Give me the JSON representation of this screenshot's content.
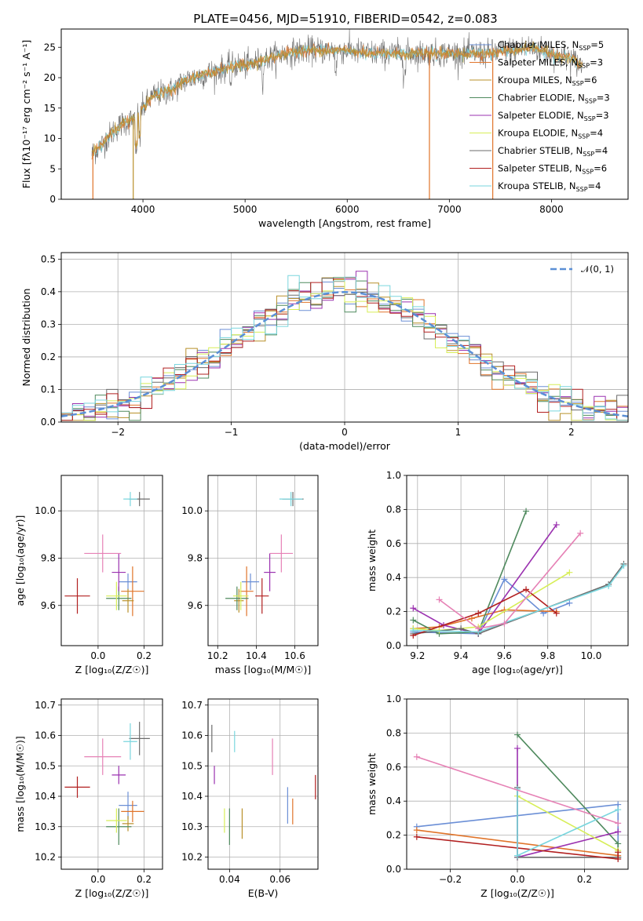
{
  "title": "PLATE=0456, MJD=51910, FIBERID=0542, z=0.083",
  "colors": {
    "Chabrier MILES": "#6b8fd6",
    "Salpeter MILES": "#e0742a",
    "Kroupa MILES": "#b8902a",
    "Chabrier ELODIE": "#4f8a5e",
    "Salpeter ELODIE": "#9b32b0",
    "Kroupa ELODIE": "#d7ee57",
    "Chabrier STELIB": "#6b6b6b",
    "Salpeter STELIB": "#b22020",
    "Kroupa STELIB": "#7ad6de",
    "pink": "#e681b5",
    "normal": "#5b8fd6"
  },
  "chart_data": [
    {
      "id": "spectrum",
      "type": "line",
      "title": "PLATE=0456, MJD=51910, FIBERID=0542, z=0.083",
      "xlabel": "wavelength [Angstrom, rest frame]",
      "ylabel": "Flux [fλ10⁻¹⁷ erg cm⁻² s⁻¹ A⁻¹]",
      "xlim": [
        3200,
        8750
      ],
      "ylim": [
        0,
        28
      ],
      "xticks": [
        "4000",
        "5000",
        "6000",
        "7000",
        "8000"
      ],
      "yticks": [
        "0",
        "5",
        "10",
        "15",
        "20",
        "25"
      ],
      "grid": false,
      "legend": "top-right",
      "envelope": {
        "x": [
          3500,
          3600,
          3700,
          3800,
          3900,
          4000,
          4100,
          4200,
          4300,
          4400,
          4500,
          4600,
          4700,
          4800,
          4900,
          5000,
          5200,
          5400,
          5600,
          5800,
          6000,
          6200,
          6400,
          6600,
          6800,
          7000,
          7200,
          7400,
          7600,
          7800,
          8000,
          8200,
          8300
        ],
        "y": [
          7.5,
          9,
          11,
          12.5,
          13,
          15,
          17,
          17.5,
          18,
          19.5,
          20,
          20.5,
          21,
          21.5,
          22,
          22,
          23,
          24,
          24.5,
          24.5,
          24.5,
          24,
          24,
          24,
          24,
          24,
          24,
          24,
          24.5,
          25,
          24,
          23,
          22
        ]
      },
      "series": [
        {
          "label": "Chabrier MILES",
          "nssp": "5"
        },
        {
          "label": "Salpeter MILES",
          "nssp": "3"
        },
        {
          "label": "Kroupa MILES",
          "nssp": "6"
        },
        {
          "label": "Chabrier ELODIE",
          "nssp": "3"
        },
        {
          "label": "Salpeter ELODIE",
          "nssp": "3"
        },
        {
          "label": "Kroupa ELODIE",
          "nssp": "4"
        },
        {
          "label": "Chabrier STELIB",
          "nssp": "4"
        },
        {
          "label": "Salpeter STELIB",
          "nssp": "6"
        },
        {
          "label": "Kroupa STELIB",
          "nssp": "4"
        }
      ]
    },
    {
      "id": "residuals",
      "type": "line",
      "xlabel": "(data-model)/error",
      "ylabel": "Normed distribution",
      "xlim": [
        -2.5,
        2.5
      ],
      "ylim": [
        0,
        0.52
      ],
      "xticks": [
        "−2",
        "−1",
        "0",
        "1",
        "2"
      ],
      "yticks": [
        "0.0",
        "0.1",
        "0.2",
        "0.3",
        "0.4",
        "0.5"
      ],
      "grid": true,
      "legend": "top-right",
      "legend_label": "𝒩(0, 1)",
      "bin_width": 0.1
    },
    {
      "id": "age_vs_Z",
      "type": "scatter",
      "xlabel": "Z [log₁₀(Z/Z☉)]",
      "ylabel": "age  [log₁₀(age/yr)]",
      "xlim": [
        -0.16,
        0.28
      ],
      "ylim": [
        9.43,
        10.15
      ],
      "xticks": [
        "0.0",
        "0.2"
      ],
      "yticks": [
        "9.6",
        "9.8",
        "10.0"
      ],
      "grid": true
    },
    {
      "id": "age_vs_mass",
      "type": "scatter",
      "xlabel": "mass [log₁₀(M/M☉)]",
      "xlim": [
        10.15,
        10.72
      ],
      "ylim": [
        9.43,
        10.15
      ],
      "xticks": [
        "10.2",
        "10.4",
        "10.6"
      ],
      "yticks": [
        "9.6",
        "9.8",
        "10.0"
      ],
      "grid": true
    },
    {
      "id": "weight_vs_age",
      "type": "line",
      "xlabel": "age  [log₁₀(age/yr)]",
      "ylabel": "mass weight",
      "xlim": [
        9.15,
        10.17
      ],
      "ylim": [
        0,
        1
      ],
      "xticks": [
        "9.2",
        "9.4",
        "9.6",
        "9.8",
        "10.0"
      ],
      "yticks": [
        "0.0",
        "0.2",
        "0.4",
        "0.6",
        "0.8",
        "1.0"
      ],
      "grid": true
    },
    {
      "id": "mass_vs_Z",
      "type": "scatter",
      "xlabel": "Z [log₁₀(Z/Z☉)]",
      "ylabel": "mass [log₁₀(M/M☉)]",
      "xlim": [
        -0.16,
        0.28
      ],
      "ylim": [
        10.16,
        10.72
      ],
      "xticks": [
        "0.0",
        "0.2"
      ],
      "yticks": [
        "10.2",
        "10.3",
        "10.4",
        "10.5",
        "10.6",
        "10.7"
      ],
      "grid": true
    },
    {
      "id": "mass_vs_ebv",
      "type": "scatter",
      "xlabel": "E(B-V)",
      "xlim": [
        0.0315,
        0.075
      ],
      "ylim": [
        10.16,
        10.72
      ],
      "xticks": [
        "0.04",
        "0.06"
      ],
      "yticks": [
        "10.2",
        "10.3",
        "10.4",
        "10.5",
        "10.6",
        "10.7"
      ],
      "grid": true
    },
    {
      "id": "weight_vs_Z",
      "type": "line",
      "xlabel": "Z [log₁₀(Z/Z☉)]",
      "ylabel": "mass weight",
      "xlim": [
        -0.33,
        0.33
      ],
      "ylim": [
        0,
        1
      ],
      "xticks": [
        "−0.2",
        "0.0",
        "0.2"
      ],
      "yticks": [
        "0.0",
        "0.2",
        "0.4",
        "0.6",
        "0.8",
        "1.0"
      ],
      "grid": true
    }
  ],
  "fits": [
    {
      "c": "Chabrier MILES",
      "Z": 0.13,
      "dZ": 0.08,
      "age": 9.7,
      "dage": 0.07,
      "mass": 10.37,
      "dmass": 0.09,
      "ebv": 0.063,
      "debv": 0.12
    },
    {
      "c": "Salpeter MILES",
      "Z": 0.15,
      "dZ": 0.1,
      "age": 9.66,
      "dage": 0.21,
      "mass": 10.35,
      "dmass": 0.07,
      "ebv": 0.065,
      "debv": 0.085
    },
    {
      "c": "Kroupa MILES",
      "Z": 0.13,
      "dZ": 0.05,
      "age": 9.62,
      "dage": 0.1,
      "mass": 10.31,
      "dmass": 0.05,
      "ebv": 0.045,
      "debv": 0.1
    },
    {
      "c": "Chabrier ELODIE",
      "Z": 0.09,
      "dZ": 0.11,
      "age": 9.63,
      "dage": 0.1,
      "mass": 10.3,
      "dmass": 0.12,
      "ebv": 0.04,
      "debv": 0.12
    },
    {
      "c": "Salpeter ELODIE",
      "Z": 0.09,
      "dZ": 0.06,
      "age": 9.74,
      "dage": 0.16,
      "mass": 10.47,
      "dmass": 0.06,
      "ebv": 0.034,
      "debv": 0.06
    },
    {
      "c": "Kroupa ELODIE",
      "Z": 0.08,
      "dZ": 0.09,
      "age": 9.64,
      "dage": 0.12,
      "mass": 10.32,
      "dmass": 0.08,
      "ebv": 0.038,
      "debv": 0.08
    },
    {
      "c": "Chabrier STELIB",
      "Z": 0.18,
      "dZ": 0.09,
      "age": 10.05,
      "dage": 0.06,
      "mass": 10.59,
      "dmass": 0.11,
      "ebv": 0.033,
      "debv": 0.09
    },
    {
      "c": "Salpeter STELIB",
      "Z": -0.09,
      "dZ": 0.11,
      "age": 9.64,
      "dage": 0.15,
      "mass": 10.43,
      "dmass": 0.07,
      "ebv": 0.074,
      "debv": 0.08
    },
    {
      "c": "Kroupa STELIB",
      "Z": 0.14,
      "dZ": 0.06,
      "age": 10.05,
      "dage": 0.06,
      "mass": 10.58,
      "dmass": 0.12,
      "ebv": 0.042,
      "debv": 0.07
    },
    {
      "c": "pink",
      "Z": 0.02,
      "dZ": 0.16,
      "age": 9.82,
      "dage": 0.16,
      "mass": 10.53,
      "dmass": 0.12,
      "ebv": 0.057,
      "debv": 0.12
    }
  ],
  "weights": [
    {
      "c": "Chabrier MILES",
      "age": [
        9.18,
        9.48,
        9.6,
        9.78,
        9.9
      ],
      "Z": [
        -0.3,
        0.3,
        0.3
      ],
      "w": [
        0.08,
        0.07,
        0.39,
        0.19,
        0.25
      ],
      "wz": [
        0.25,
        0.38,
        0.07
      ]
    },
    {
      "c": "Salpeter MILES",
      "age": [
        9.18,
        9.3,
        9.45,
        9.6,
        9.84
      ],
      "Z": [
        -0.3,
        0.3
      ],
      "w": [
        0.1,
        0.11,
        0.16,
        0.21,
        0.2
      ],
      "wz": [
        0.23,
        0.08
      ]
    },
    {
      "c": "Chabrier ELODIE",
      "age": [
        9.18,
        9.3,
        9.48,
        9.7
      ],
      "Z": [
        0.0,
        0.3,
        0.3
      ],
      "w": [
        0.15,
        0.07,
        0.08,
        0.79
      ],
      "wz": [
        0.79,
        0.15,
        0.07
      ]
    },
    {
      "c": "Salpeter ELODIE",
      "age": [
        9.18,
        9.32,
        9.48,
        9.84
      ],
      "Z": [
        0.0,
        0.0,
        0.3
      ],
      "w": [
        0.22,
        0.12,
        0.07,
        0.71
      ],
      "wz": [
        0.71,
        0.07,
        0.22
      ]
    },
    {
      "c": "Kroupa ELODIE",
      "age": [
        9.18,
        9.3,
        9.48,
        9.9
      ],
      "Z": [
        0.0,
        0.3,
        0.3
      ],
      "w": [
        0.1,
        0.09,
        0.11,
        0.43
      ],
      "wz": [
        0.43,
        0.11,
        0.1
      ]
    },
    {
      "c": "Chabrier STELIB",
      "age": [
        9.18,
        9.4,
        9.48,
        10.08,
        10.15
      ],
      "Z": [
        0.0,
        0.0,
        0.3
      ],
      "w": [
        0.07,
        0.1,
        0.07,
        0.36,
        0.48
      ],
      "wz": [
        0.48,
        0.07,
        0.07
      ]
    },
    {
      "c": "Salpeter STELIB",
      "age": [
        9.18,
        9.48,
        9.7,
        9.84
      ],
      "Z": [
        -0.3,
        0.3,
        0.3
      ],
      "w": [
        0.06,
        0.19,
        0.33,
        0.19
      ],
      "wz": [
        0.19,
        0.06,
        0.1
      ]
    },
    {
      "c": "Kroupa STELIB",
      "age": [
        9.18,
        9.48,
        10.08,
        10.15
      ],
      "Z": [
        0.0,
        0.0,
        0.3
      ],
      "w": [
        0.09,
        0.08,
        0.35,
        0.47
      ],
      "wz": [
        0.47,
        0.08,
        0.35
      ]
    },
    {
      "c": "pink",
      "age": [
        9.3,
        9.48,
        9.6,
        9.95
      ],
      "Z": [
        -0.3,
        0.3
      ],
      "w": [
        0.27,
        0.1,
        0.13,
        0.66
      ],
      "wz": [
        0.66,
        0.27
      ]
    }
  ]
}
